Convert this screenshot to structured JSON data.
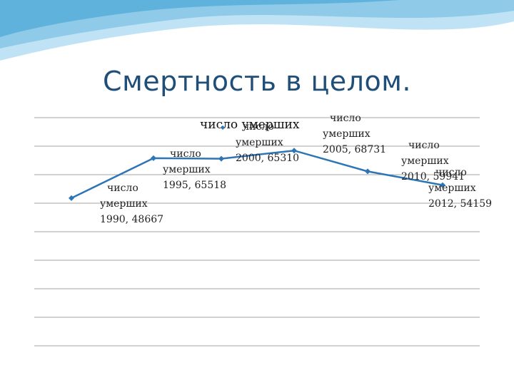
{
  "slide": {
    "title": "Смертность в целом."
  },
  "colors": {
    "line": "#2e75b6",
    "marker": "#2e75b6",
    "grid": "#a6a6a6",
    "title": "#1f4e79",
    "wave_light": "#bfe3f5",
    "wave_mid": "#8fcbe8",
    "wave_dark": "#5fb2dc"
  },
  "chart_data": {
    "type": "line",
    "title": "",
    "xlabel": "",
    "ylabel": "",
    "grid": true,
    "legend_position": "top",
    "series": [
      {
        "name": "число умерших",
        "x": [
          1990,
          1995,
          2000,
          2005,
          2010,
          2012
        ],
        "y": [
          48667,
          65518,
          65310,
          68731,
          59941,
          54159
        ]
      }
    ],
    "data_labels": [
      "число умерших , 1990, 48667",
      "число умерших , 1995, 65518",
      "число умерших , 2000, 65310",
      "число умерших , 2005, 68731",
      "число умерших , 2010, 59941",
      "число умерших , 2012, 54159"
    ]
  }
}
